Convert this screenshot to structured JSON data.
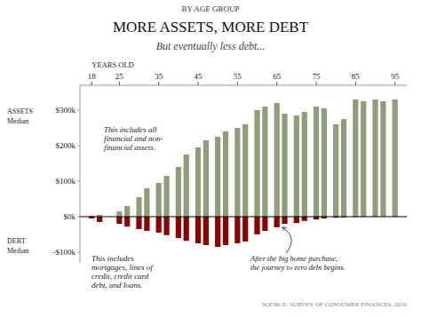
{
  "chart_data": {
    "type": "bar",
    "title": "MORE ASSETS,  MORE DEBT",
    "subtitle": "But eventually less debt...",
    "x_label": "YEARS OLD",
    "annotations": [
      "BY AGE GROUP",
      "ASSETS\nMedian",
      "DEBT\nMedian",
      "This includes all\nfinancial and non-\nfinancial assets.",
      "This includes\nmortgages, lines of\ncredit, credit card\ndebt, and loans.",
      "After the big home purchase,\nthe journey to zero debt begins.",
      "SOURCE:  SURVEY OF CONSUMER FINANCES, 2016"
    ],
    "x": [
      18,
      20,
      25,
      27,
      30,
      32,
      35,
      37,
      40,
      42,
      45,
      47,
      50,
      52,
      55,
      57,
      60,
      62,
      65,
      67,
      70,
      72,
      75,
      77,
      80,
      82,
      85,
      87,
      90,
      92,
      95
    ],
    "series": [
      {
        "color": "#8f9e7a",
        "values": [
          2000,
          5000,
          15000,
          30000,
          55000,
          80000,
          95000,
          115000,
          140000,
          175000,
          195000,
          215000,
          225000,
          240000,
          250000,
          260000,
          300000,
          310000,
          320000,
          290000,
          285000,
          295000,
          310000,
          305000,
          260000,
          275000,
          330000,
          325000,
          330000,
          325000,
          330000
        ]
      },
      {
        "color": "#8b0000",
        "values": [
          -5000,
          -15000,
          -20000,
          -28000,
          -35000,
          -40000,
          -45000,
          -52000,
          -60000,
          -68000,
          -75000,
          -80000,
          -85000,
          -80000,
          -75000,
          -70000,
          -50000,
          -40000,
          -30000,
          -20000,
          -18000,
          -12000,
          -8000,
          -5000,
          -3000,
          -2000,
          -1000,
          -500,
          -200,
          -100,
          -50
        ]
      }
    ],
    "xlim": [
      15,
      98
    ],
    "xticks": [
      18,
      25,
      35,
      45,
      55,
      65,
      75,
      85,
      95
    ],
    "ylim": [
      -130000,
      370000
    ],
    "yticks": [
      {
        "value": -100000,
        "label": "-$100k"
      },
      {
        "value": 0,
        "label": "$0k"
      },
      {
        "value": 100000,
        "label": "$100k"
      },
      {
        "value": 200000,
        "label": "$200k"
      },
      {
        "value": 300000,
        "label": "$300k"
      }
    ],
    "grid": false
  }
}
